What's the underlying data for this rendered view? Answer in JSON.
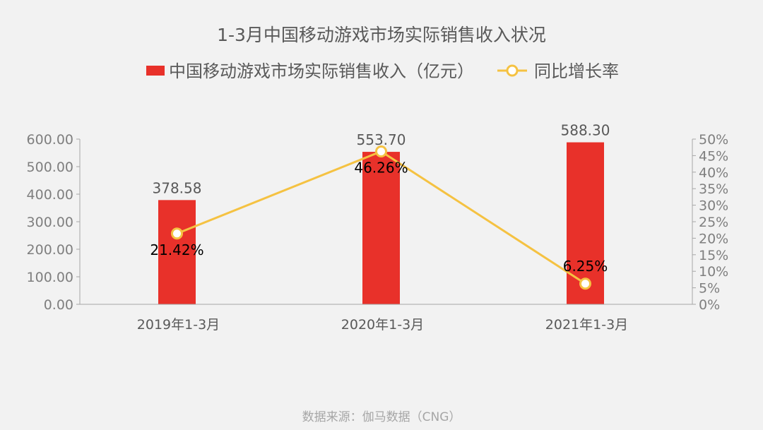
{
  "chart_data": {
    "type": "bar",
    "title": "1-3月中国移动游戏市场实际销售收入状况",
    "categories": [
      "2019年1-3月",
      "2020年1-3月",
      "2021年1-3月"
    ],
    "series": [
      {
        "name": "中国移动游戏市场实际销售收入（亿元）",
        "type": "bar",
        "axis": "left",
        "values": [
          378.58,
          553.7,
          588.3
        ],
        "labels": [
          "378.58",
          "553.70",
          "588.30"
        ],
        "color": "#e8312a"
      },
      {
        "name": "同比增长率",
        "type": "line",
        "axis": "right",
        "values": [
          21.42,
          46.26,
          6.25
        ],
        "labels": [
          "21.42%",
          "46.26%",
          "6.25%"
        ],
        "color": "#f5c242"
      }
    ],
    "y_left": {
      "min": 0,
      "max": 600,
      "ticks": [
        "0.00",
        "100.00",
        "200.00",
        "300.00",
        "400.00",
        "500.00",
        "600.00"
      ]
    },
    "y_right": {
      "min": 0,
      "max": 50,
      "ticks": [
        "0%",
        "5%",
        "10%",
        "15%",
        "20%",
        "25%",
        "30%",
        "35%",
        "40%",
        "45%",
        "50%"
      ]
    },
    "legend_position": "top",
    "grid": false
  },
  "source": "数据来源：伽马数据（CNG）"
}
